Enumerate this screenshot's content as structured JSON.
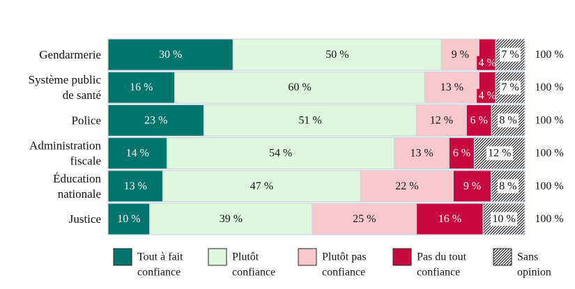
{
  "chart_data": {
    "type": "bar",
    "orientation": "horizontal",
    "stacked": true,
    "categories": [
      [
        "Gendarmerie"
      ],
      [
        "Système public",
        "de santé"
      ],
      [
        "Police"
      ],
      [
        "Administration",
        "fiscale"
      ],
      [
        "Éducation",
        "nationale"
      ],
      [
        "Justice"
      ]
    ],
    "series": [
      {
        "name": [
          "Tout à fait",
          "confiance"
        ],
        "color": "#00756b",
        "text_color": "#ffffff",
        "pattern": false,
        "values": [
          30,
          16,
          23,
          14,
          13,
          10
        ]
      },
      {
        "name": [
          "Plutôt",
          "confiance"
        ],
        "color": "#dff7dc",
        "text_color": "#111111",
        "pattern": false,
        "values": [
          50,
          60,
          51,
          54,
          47,
          39
        ]
      },
      {
        "name": [
          "Plutôt pas",
          "confiance"
        ],
        "color": "#f8c9cb",
        "text_color": "#111111",
        "pattern": false,
        "values": [
          9,
          13,
          12,
          13,
          22,
          25
        ]
      },
      {
        "name": [
          "Pas du tout",
          "confiance"
        ],
        "color": "#c8093f",
        "text_color": "#ffffff",
        "pattern": false,
        "values": [
          4,
          4,
          6,
          6,
          9,
          16
        ]
      },
      {
        "name": [
          "Sans",
          "opinion"
        ],
        "color": "#ffffff",
        "text_color": "#111111",
        "pattern": true,
        "values": [
          7,
          7,
          8,
          12,
          8,
          10
        ]
      }
    ],
    "value_suffix": " %",
    "totals": [
      "100 %",
      "100 %",
      "100 %",
      "100 %",
      "100 %",
      "100 %"
    ],
    "legend_position": "bottom",
    "grid": false
  }
}
